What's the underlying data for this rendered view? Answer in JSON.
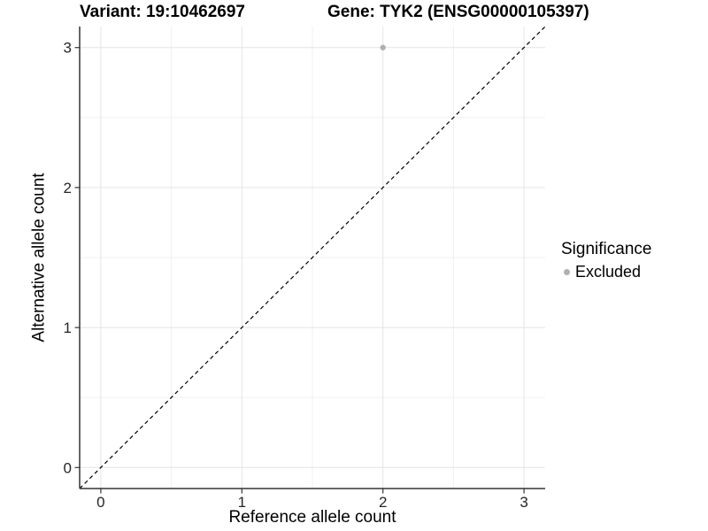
{
  "titles": {
    "variant": "Variant: 19:10462697",
    "gene": "Gene: TYK2 (ENSG00000105397)"
  },
  "axes": {
    "x_label": "Reference allele count",
    "y_label": "Alternative allele count"
  },
  "legend": {
    "title": "Significance",
    "position": "right",
    "items": [
      {
        "label": "Excluded",
        "color": "#b0b0b0",
        "marker": "circle"
      }
    ]
  },
  "colors": {
    "background": "#ffffff",
    "grid_major": "#e4e4e4",
    "grid_minor": "#f0f0f0",
    "axis_line": "#333333",
    "tick_label": "#262626",
    "reference_line": "#000000",
    "point": "#b0b0b0"
  },
  "chart_data": {
    "type": "scatter",
    "title": "Variant: 19:10462697   Gene: TYK2 (ENSG00000105397)",
    "xlabel": "Reference allele count",
    "ylabel": "Alternative allele count",
    "xlim": [
      -0.15,
      3.15
    ],
    "ylim": [
      -0.15,
      3.15
    ],
    "x_ticks": [
      0,
      1,
      2,
      3
    ],
    "y_ticks": [
      0,
      1,
      2,
      3
    ],
    "x_minor": [
      0.5,
      1.5,
      2.5
    ],
    "y_minor": [
      0.5,
      1.5,
      2.5
    ],
    "grid": true,
    "legend_position": "right",
    "series": [
      {
        "name": "Excluded",
        "marker": "circle",
        "color": "#b0b0b0",
        "points": [
          [
            2,
            3
          ]
        ]
      }
    ],
    "reference_line": {
      "slope": 1,
      "intercept": 0,
      "style": "dashed",
      "color": "#000000"
    }
  }
}
